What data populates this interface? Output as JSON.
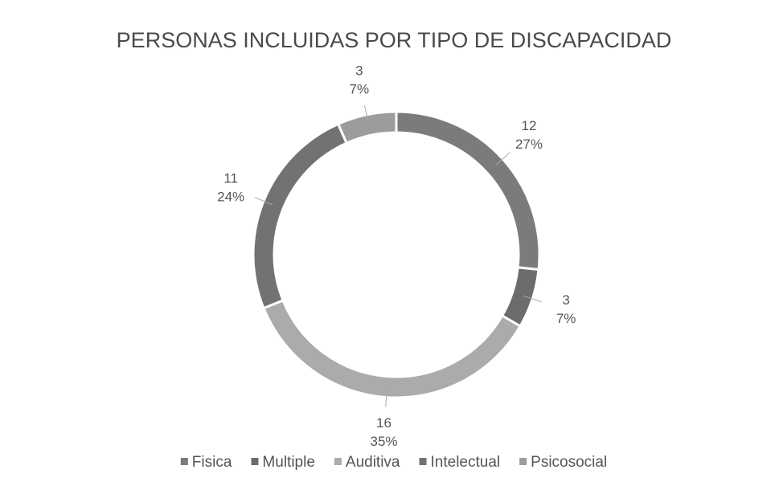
{
  "chart_data": {
    "type": "donut",
    "title": "PERSONAS INCLUIDAS POR TIPO DE DISCAPACIDAD",
    "categories": [
      "Fisica",
      "Multiple",
      "Auditiva",
      "Intelectual",
      "Psicosocial"
    ],
    "values": [
      12,
      3,
      16,
      11,
      3
    ],
    "percentages": [
      27,
      7,
      35,
      24,
      7
    ],
    "percentage_labels": [
      "27%",
      "7%",
      "35%",
      "24%",
      "7%"
    ],
    "colors": [
      "#7b7b7b",
      "#6c6c6c",
      "#ababab",
      "#727272",
      "#9c9c9c"
    ],
    "legend": "bottom"
  }
}
